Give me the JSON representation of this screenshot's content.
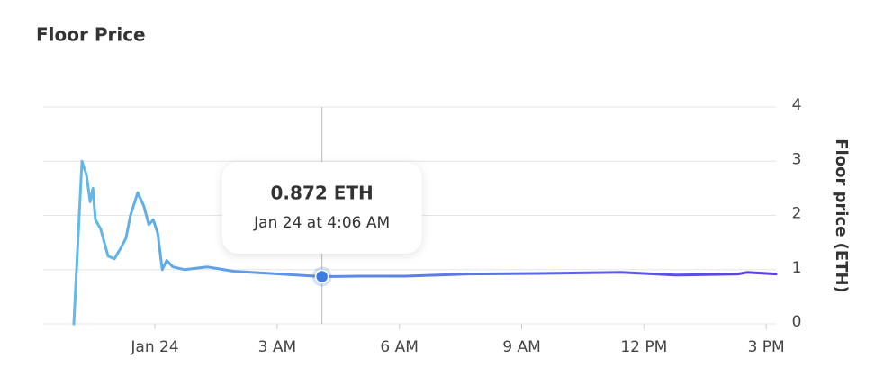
{
  "chart_data": {
    "type": "line",
    "title": "Floor Price",
    "y_label": "Floor price (ETH)",
    "series": [
      {
        "name": "Floor price",
        "colors": [
          "#62c0e8",
          "#5a3ee0"
        ],
        "x": [
          -1.99,
          -1.79,
          -1.68,
          -1.59,
          -1.52,
          -1.46,
          -1.33,
          -1.15,
          -0.99,
          -0.82,
          -0.71,
          -0.6,
          -0.42,
          -0.27,
          -0.15,
          -0.04,
          0.07,
          0.18,
          0.29,
          0.44,
          0.73,
          1.28,
          1.94,
          2.83,
          4.1,
          5.04,
          6.14,
          7.69,
          9.45,
          11.44,
          12.77,
          14.31,
          14.53,
          15.24
        ],
        "values": [
          0,
          3.0,
          2.75,
          2.25,
          2.5,
          1.92,
          1.75,
          1.25,
          1.2,
          1.42,
          1.58,
          2.0,
          2.42,
          2.17,
          1.83,
          1.92,
          1.67,
          1.0,
          1.17,
          1.05,
          1.0,
          1.05,
          0.97,
          0.93,
          0.872,
          0.88,
          0.88,
          0.92,
          0.93,
          0.95,
          0.9,
          0.92,
          0.95,
          0.92
        ]
      }
    ],
    "hover": {
      "x": 4.1,
      "value": 0.872,
      "label": "0.872 ETH",
      "date": "Jan 24 at 4:06 AM",
      "color": "#3d7be0"
    },
    "xlim": [
      -2.74,
      15.24
    ],
    "xticks": [
      {
        "value": 0,
        "label": "Jan 24"
      },
      {
        "value": 3,
        "label": "3 AM"
      },
      {
        "value": 6,
        "label": "6 AM"
      },
      {
        "value": 9,
        "label": "9 AM"
      },
      {
        "value": 12,
        "label": "12 PM"
      },
      {
        "value": 15,
        "label": "3 PM"
      }
    ],
    "ylim": [
      0,
      4
    ],
    "yticks": [
      0,
      1,
      2,
      3,
      4
    ],
    "grid": true
  }
}
